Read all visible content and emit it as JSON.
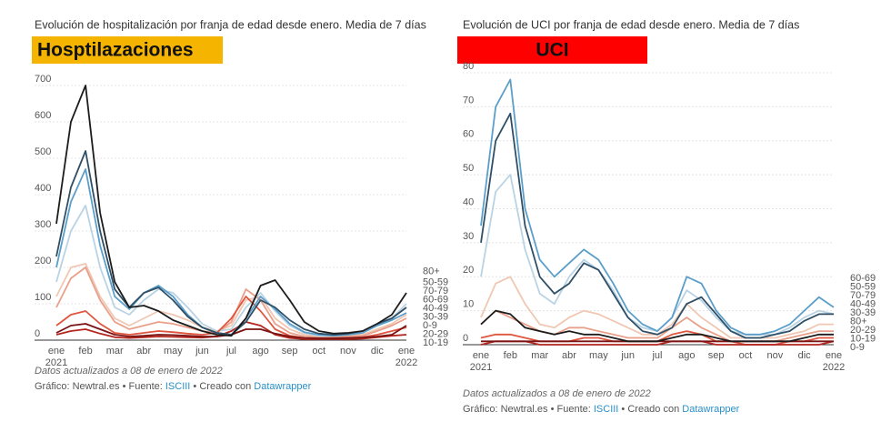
{
  "chart_data": [
    {
      "type": "line",
      "title": "Evolución de hospitalización por franja de edad desde enero. Media de 7 días",
      "heading": "Hosptilazaciones",
      "heading_color": "#f5b400",
      "note": "Datos actualizados a 08 de enero de 2022",
      "credit_parts": [
        "Gráfico: Newtral.es • Fuente: ",
        "ISCIII",
        " • Creado con ",
        "Datawrapper"
      ],
      "categories": [
        "ene",
        null,
        "feb",
        null,
        "mar",
        null,
        "abr",
        null,
        "may",
        null,
        "jun",
        null,
        "jul",
        null,
        "ago",
        null,
        "sep",
        null,
        "oct",
        null,
        "nov",
        null,
        "dic",
        null,
        "ene"
      ],
      "x_sublabels": [
        "2021",
        null,
        null,
        null,
        null,
        null,
        null,
        null,
        null,
        null,
        null,
        null,
        null,
        null,
        null,
        null,
        null,
        null,
        null,
        null,
        null,
        null,
        null,
        null,
        "2022"
      ],
      "ylim": [
        0,
        700
      ],
      "yticks": [
        0,
        100,
        200,
        300,
        400,
        500,
        600,
        700
      ],
      "grid": true,
      "series": [
        {
          "name": "40-49",
          "color": "#f0c7b2",
          "values": [
            120,
            200,
            210,
            120,
            60,
            40,
            60,
            80,
            70,
            55,
            35,
            25,
            40,
            110,
            120,
            60,
            30,
            15,
            10,
            10,
            12,
            15,
            30,
            45,
            70
          ]
        },
        {
          "name": "30-39",
          "color": "#e8a08a",
          "values": [
            90,
            170,
            200,
            110,
            50,
            30,
            40,
            50,
            45,
            35,
            25,
            20,
            50,
            140,
            110,
            45,
            20,
            10,
            8,
            8,
            10,
            12,
            25,
            40,
            60
          ]
        },
        {
          "name": "50-59",
          "color": "#b9d3e4",
          "values": [
            160,
            300,
            370,
            200,
            90,
            70,
            110,
            140,
            130,
            90,
            45,
            25,
            30,
            90,
            130,
            80,
            40,
            20,
            12,
            12,
            15,
            20,
            40,
            60,
            100
          ]
        },
        {
          "name": "20-29",
          "color": "#e0553e",
          "values": [
            40,
            70,
            80,
            45,
            20,
            15,
            20,
            25,
            22,
            18,
            15,
            20,
            60,
            120,
            80,
            30,
            12,
            6,
            5,
            5,
            6,
            8,
            15,
            25,
            35
          ]
        },
        {
          "name": "10-19",
          "color": "#b3261e",
          "values": [
            15,
            25,
            30,
            18,
            8,
            6,
            8,
            10,
            9,
            8,
            7,
            10,
            25,
            50,
            40,
            15,
            6,
            3,
            3,
            3,
            3,
            4,
            8,
            12,
            15
          ]
        },
        {
          "name": "0-9",
          "color": "#7a1414",
          "values": [
            20,
            40,
            45,
            30,
            15,
            10,
            12,
            15,
            14,
            12,
            10,
            10,
            15,
            30,
            30,
            18,
            10,
            6,
            5,
            5,
            6,
            7,
            10,
            15,
            40
          ]
        },
        {
          "name": "60-69",
          "color": "#5b9ec9",
          "values": [
            200,
            380,
            470,
            260,
            120,
            85,
            130,
            150,
            120,
            70,
            35,
            20,
            15,
            60,
            120,
            85,
            45,
            22,
            15,
            12,
            15,
            20,
            40,
            55,
            75
          ]
        },
        {
          "name": "70-79",
          "color": "#2f4f66",
          "values": [
            230,
            420,
            520,
            300,
            140,
            90,
            130,
            145,
            110,
            65,
            35,
            20,
            15,
            50,
            110,
            90,
            55,
            30,
            18,
            15,
            18,
            25,
            45,
            60,
            90
          ]
        },
        {
          "name": "80+",
          "color": "#1c1c1c",
          "values": [
            320,
            600,
            700,
            350,
            160,
            90,
            95,
            80,
            55,
            40,
            25,
            15,
            12,
            60,
            150,
            165,
            110,
            50,
            25,
            18,
            20,
            25,
            45,
            70,
            130
          ]
        }
      ]
    },
    {
      "type": "line",
      "title": "Evolución de UCI por franja de edad desde enero. Media de 7 días",
      "heading": "UCI",
      "heading_color": "#ff0000",
      "note": "Datos actualizados a 08 de enero de 2022",
      "credit_parts": [
        "Gráfico: Newtral.es • Fuente: ",
        "ISCIII",
        " • Creado con ",
        "Datawrapper"
      ],
      "categories": [
        "ene",
        null,
        "feb",
        null,
        "mar",
        null,
        "abr",
        null,
        "may",
        null,
        "jun",
        null,
        "jul",
        null,
        "ago",
        null,
        "sep",
        null,
        "oct",
        null,
        "nov",
        null,
        "dic",
        null,
        "ene"
      ],
      "x_sublabels": [
        "2021",
        null,
        null,
        null,
        null,
        null,
        null,
        null,
        null,
        null,
        null,
        null,
        null,
        null,
        null,
        null,
        null,
        null,
        null,
        null,
        null,
        null,
        null,
        null,
        "2022"
      ],
      "ylim": [
        0,
        80
      ],
      "yticks": [
        0,
        10,
        20,
        30,
        40,
        50,
        60,
        70,
        80
      ],
      "grid": true,
      "series": [
        {
          "name": "40-49",
          "color": "#f0c7b2",
          "values": [
            8,
            18,
            20,
            12,
            6,
            5,
            8,
            10,
            9,
            7,
            5,
            3,
            3,
            6,
            12,
            8,
            5,
            2,
            2,
            2,
            2,
            3,
            4,
            6,
            6
          ]
        },
        {
          "name": "30-39",
          "color": "#e8a08a",
          "values": [
            6,
            10,
            8,
            6,
            4,
            3,
            5,
            5,
            4,
            3,
            2,
            2,
            2,
            5,
            8,
            5,
            3,
            1,
            1,
            1,
            1,
            2,
            3,
            4,
            4
          ]
        },
        {
          "name": "50-59",
          "color": "#b9d3e4",
          "values": [
            20,
            45,
            50,
            28,
            15,
            12,
            20,
            25,
            22,
            16,
            8,
            5,
            4,
            8,
            16,
            13,
            8,
            4,
            3,
            3,
            3,
            5,
            8,
            10,
            9
          ]
        },
        {
          "name": "20-29",
          "color": "#e0553e",
          "values": [
            2,
            3,
            3,
            2,
            1,
            1,
            1,
            2,
            2,
            1,
            1,
            1,
            1,
            3,
            4,
            3,
            1,
            1,
            0,
            0,
            0,
            1,
            1,
            2,
            2
          ]
        },
        {
          "name": "10-19",
          "color": "#b3261e",
          "values": [
            0,
            1,
            1,
            1,
            0,
            0,
            0,
            0,
            0,
            0,
            0,
            0,
            0,
            1,
            1,
            1,
            0,
            0,
            0,
            0,
            0,
            0,
            0,
            0,
            1
          ]
        },
        {
          "name": "0-9",
          "color": "#7a1414",
          "values": [
            1,
            1,
            1,
            1,
            1,
            1,
            1,
            1,
            1,
            1,
            1,
            1,
            1,
            1,
            1,
            1,
            1,
            1,
            1,
            1,
            1,
            1,
            1,
            1,
            1
          ]
        },
        {
          "name": "80+",
          "color": "#1c1c1c",
          "values": [
            6,
            10,
            9,
            5,
            4,
            3,
            4,
            3,
            3,
            2,
            1,
            1,
            1,
            2,
            3,
            3,
            2,
            1,
            1,
            1,
            1,
            1,
            2,
            3,
            3
          ]
        },
        {
          "name": "70-79",
          "color": "#2f4f66",
          "values": [
            30,
            60,
            68,
            35,
            20,
            15,
            18,
            24,
            22,
            15,
            8,
            4,
            3,
            5,
            12,
            14,
            9,
            4,
            2,
            2,
            3,
            4,
            7,
            9,
            9
          ]
        },
        {
          "name": "60-69",
          "color": "#5b9ec9",
          "values": [
            35,
            70,
            78,
            40,
            25,
            20,
            24,
            28,
            25,
            18,
            10,
            6,
            4,
            8,
            20,
            18,
            10,
            5,
            3,
            3,
            4,
            6,
            10,
            14,
            11
          ]
        }
      ]
    }
  ]
}
